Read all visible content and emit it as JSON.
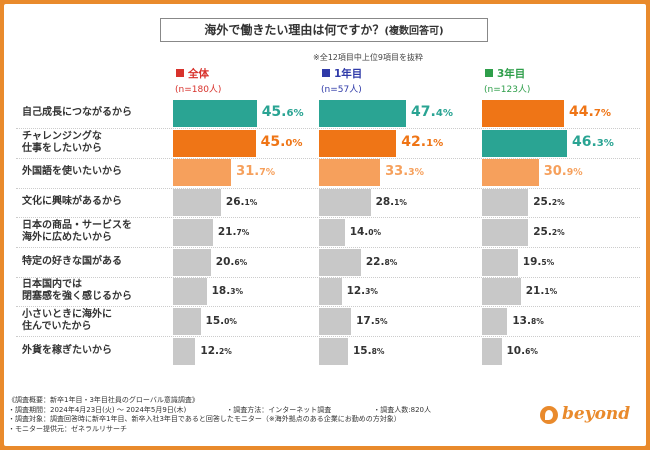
{
  "title": "海外で働きたい理由は何ですか？",
  "title_suffix": "(複数回答可)",
  "note": "※全12項目中上位9項目を抜粋",
  "colors": {
    "frame": "#e98a2c",
    "teal": "#2aa493",
    "orange": "#ef7516",
    "light_orange": "#f6a05c",
    "gray": "#c8c8c8"
  },
  "chart_data": {
    "type": "bar",
    "title": "海外で働きたい理由は何ですか？(複数回答可)",
    "unit": "%",
    "categories": [
      [
        "自己成長につながるから"
      ],
      [
        "チャレンジングな",
        "仕事をしたいから"
      ],
      [
        "外国語を使いたいから"
      ],
      [
        "文化に興味があるから"
      ],
      [
        "日本の商品・サービスを",
        "海外に広めたいから"
      ],
      [
        "特定の好きな国がある"
      ],
      [
        "日本国内では",
        "閉塞感を強く感じるから"
      ],
      [
        "小さいときに海外に",
        "住んでいたから"
      ],
      [
        "外貨を稼ぎたいから"
      ]
    ],
    "series": [
      {
        "name": "全体",
        "sample": "(n=180人)",
        "values": [
          45.6,
          45.0,
          31.7,
          26.1,
          21.7,
          20.6,
          18.3,
          15.0,
          12.2
        ],
        "colors": [
          "#2aa493",
          "#ef7516",
          "#f6a05c",
          "#c8c8c8",
          "#c8c8c8",
          "#c8c8c8",
          "#c8c8c8",
          "#c8c8c8",
          "#c8c8c8"
        ]
      },
      {
        "name": "1年目",
        "sample": "(n=57人)",
        "values": [
          47.4,
          42.1,
          33.3,
          28.1,
          14.0,
          22.8,
          12.3,
          17.5,
          15.8
        ],
        "colors": [
          "#2aa493",
          "#ef7516",
          "#f6a05c",
          "#c8c8c8",
          "#c8c8c8",
          "#c8c8c8",
          "#c8c8c8",
          "#c8c8c8",
          "#c8c8c8"
        ]
      },
      {
        "name": "3年目",
        "sample": "(n=123人)",
        "values": [
          44.7,
          46.3,
          30.9,
          25.2,
          25.2,
          19.5,
          21.1,
          13.8,
          10.6
        ],
        "colors": [
          "#ef7516",
          "#2aa493",
          "#f6a05c",
          "#c8c8c8",
          "#c8c8c8",
          "#c8c8c8",
          "#c8c8c8",
          "#c8c8c8",
          "#c8c8c8"
        ]
      }
    ],
    "value_labels": [
      [
        "45.6",
        "45.0",
        "31.7",
        "26.1",
        "21.7",
        "20.6",
        "18.3",
        "15.0",
        "12.2"
      ],
      [
        "47.4",
        "42.1",
        "33.3",
        "28.1",
        "14.0",
        "22.8",
        "12.3",
        "17.5",
        "15.8"
      ],
      [
        "44.7",
        "46.3",
        "30.9",
        "25.2",
        "25.2",
        "19.5",
        "21.1",
        "13.8",
        "10.6"
      ]
    ],
    "legend_colors": [
      "#d8322c",
      "#2f3aa8",
      "#2e9e4a"
    ]
  },
  "footer": [
    "《調査概要：新卒1年目・3年目社員のグローバル意識調査》",
    "・調査期間：2024年4月23日(火) ～ 2024年5月9日(木)",
    "・調査方法：インターネット調査",
    "・調査人数:820人",
    "・調査対象：調査回答時に新卒1年目、新卒入社3年目であると回答したモニター（※海外拠点のある企業にお勤めの方対象）",
    "・モニター提供元：ゼネラルリサーチ"
  ],
  "logo_text": "beyond"
}
